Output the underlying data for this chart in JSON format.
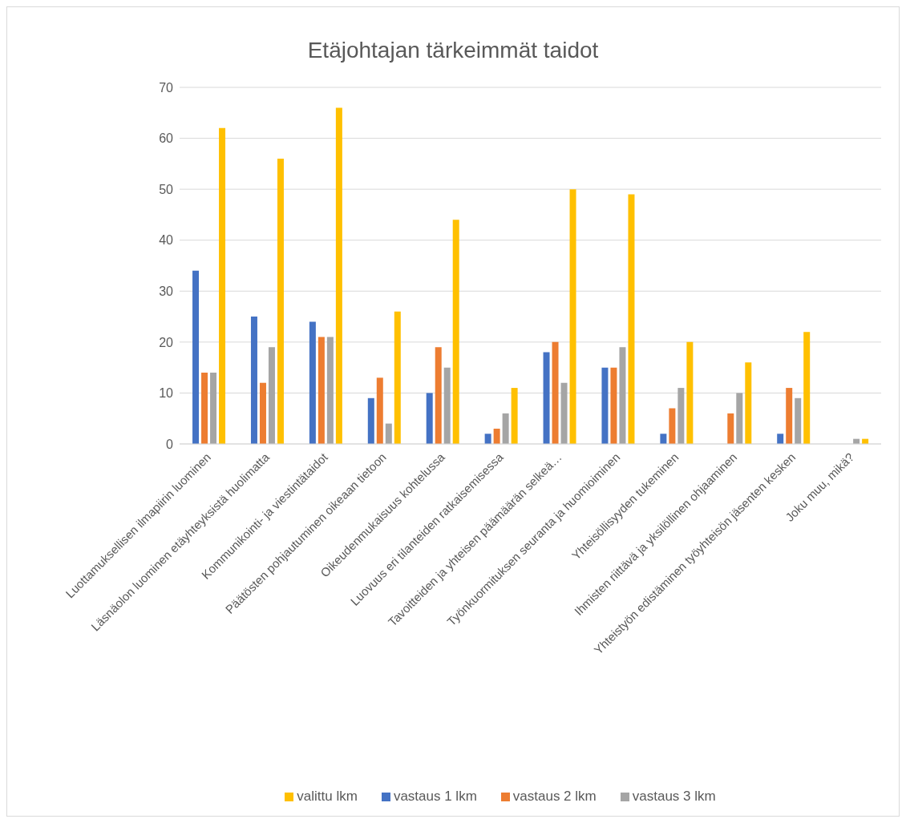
{
  "chart_data": {
    "type": "bar",
    "title": "Etäjohtajan tärkeimmät taidot",
    "categories": [
      "Luottamuksellisen ilmapiirin luominen",
      "Läsnäolon luominen etäyhteyksistä huolimatta",
      "Kommunikointi- ja viestintätaidot",
      "Päätösten pohjautuminen oikeaan tietoon",
      "Oikeudenmukaisuus kohtelussa",
      "Luovuus eri tilanteiden ratkaisemisessa",
      "Tavoitteiden ja yhteisen päämäärän selkeä…",
      "Työnkuormituksen seuranta ja huomioiminen",
      "Yhteisöllisyyden tukeminen",
      "Ihmisten riittävä ja yksilöllinen ohjaaminen",
      "Yhteistyön edistäminen työyhteisön jäsenten kesken",
      "Joku muu, mikä?"
    ],
    "series": [
      {
        "name": "vastaus 1 lkm",
        "color": "#4472c4",
        "values": [
          34,
          25,
          24,
          9,
          10,
          2,
          18,
          15,
          2,
          0,
          2,
          0
        ]
      },
      {
        "name": "vastaus 2 lkm",
        "color": "#ed7d31",
        "values": [
          14,
          12,
          21,
          13,
          19,
          3,
          20,
          15,
          7,
          6,
          11,
          0
        ]
      },
      {
        "name": "vastaus 3 lkm",
        "color": "#a5a5a5",
        "values": [
          14,
          19,
          21,
          4,
          15,
          6,
          12,
          19,
          11,
          10,
          9,
          1
        ]
      },
      {
        "name": "valittu lkm",
        "color": "#ffc000",
        "values": [
          62,
          56,
          66,
          26,
          44,
          11,
          50,
          49,
          20,
          16,
          22,
          1
        ]
      }
    ],
    "ylim": [
      0,
      70
    ],
    "yticks": [
      0,
      10,
      20,
      30,
      40,
      50,
      60,
      70
    ],
    "grid": "y",
    "legend": "bottom"
  }
}
